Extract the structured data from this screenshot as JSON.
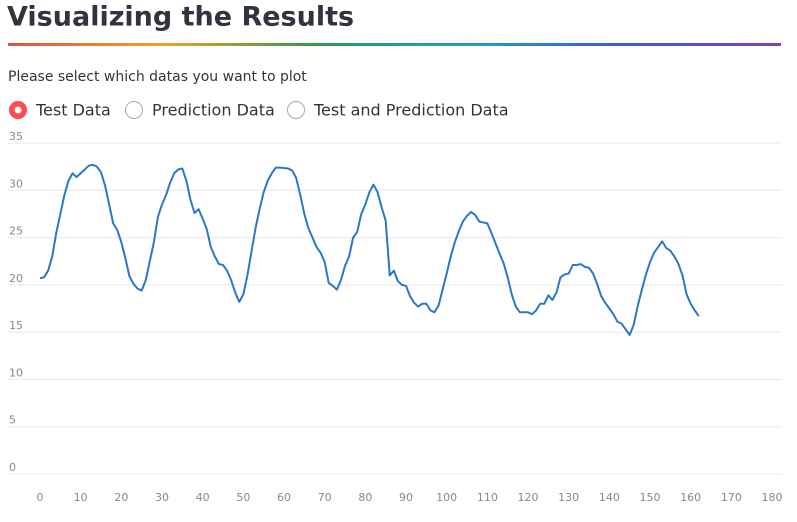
{
  "header": {
    "title": "Visualizing the Results"
  },
  "prompt": "Please select which datas you want to plot",
  "radio": {
    "options": [
      "Test Data",
      "Prediction Data",
      "Test and Prediction Data"
    ],
    "selected": 0
  },
  "chart_data": {
    "type": "line",
    "color": "#2a78c7",
    "grid": true,
    "xlim": [
      0,
      180
    ],
    "xticks": [
      0,
      10,
      20,
      30,
      40,
      50,
      60,
      70,
      80,
      90,
      100,
      110,
      120,
      130,
      140,
      150,
      160,
      170,
      180
    ],
    "ylim": [
      0,
      35
    ],
    "yticks": [
      0,
      5,
      10,
      15,
      20,
      25,
      30,
      35
    ],
    "x": [
      0,
      1,
      2,
      3,
      4,
      5,
      6,
      7,
      8,
      9,
      10,
      11,
      12,
      13,
      14,
      15,
      16,
      17,
      18,
      19,
      20,
      21,
      22,
      23,
      24,
      25,
      26,
      27,
      28,
      29,
      30,
      31,
      32,
      33,
      34,
      35,
      36,
      37,
      38,
      39,
      40,
      41,
      42,
      43,
      44,
      45,
      46,
      47,
      48,
      49,
      50,
      51,
      52,
      53,
      54,
      55,
      56,
      57,
      58,
      59,
      60,
      61,
      62,
      63,
      64,
      65,
      66,
      67,
      68,
      69,
      70,
      71,
      72,
      73,
      74,
      75,
      76,
      77,
      78,
      79,
      80,
      81,
      82,
      83,
      84,
      85,
      86,
      87,
      88,
      89,
      90,
      91,
      92,
      93,
      94,
      95,
      96,
      97,
      98,
      99,
      100,
      101,
      102,
      103,
      104,
      105,
      106,
      107,
      108,
      109,
      110,
      111,
      112,
      113,
      114,
      115,
      116,
      117,
      118,
      119,
      120,
      121,
      122,
      123,
      124,
      125,
      126,
      127,
      128,
      129,
      130,
      131,
      132,
      133,
      134,
      135,
      136,
      137,
      138,
      139,
      140,
      141,
      142,
      143,
      144,
      145,
      146,
      147,
      148,
      149,
      150,
      151,
      152,
      153,
      154,
      155,
      156,
      157,
      158,
      159,
      160,
      161,
      162
    ],
    "values": [
      20.7,
      20.8,
      21.5,
      23,
      25.5,
      27.5,
      29.5,
      31,
      31.8,
      31.4,
      31.8,
      32.2,
      32.6,
      32.7,
      32.5,
      31.9,
      30.5,
      28.5,
      26.5,
      25.8,
      24.5,
      22.8,
      20.9,
      20.1,
      19.6,
      19.4,
      20.5,
      22.5,
      24.5,
      27.2,
      28.5,
      29.5,
      30.8,
      31.8,
      32.2,
      32.3,
      31,
      29,
      27.6,
      28,
      27,
      25.9,
      24,
      23,
      22.2,
      22.1,
      21.5,
      20.5,
      19.2,
      18.2,
      19,
      21,
      23.5,
      26,
      28,
      29.8,
      31,
      31.8,
      32.4,
      32.4,
      32.35,
      32.3,
      32.1,
      31.3,
      29.5,
      27.5,
      26,
      25,
      24,
      23.4,
      22.4,
      20.2,
      19.9,
      19.5,
      20.5,
      22,
      23,
      25,
      25.6,
      27.5,
      28.5,
      29.8,
      30.6,
      29.8,
      28.2,
      26.8,
      21,
      21.5,
      20.4,
      20,
      19.9,
      18.8,
      18.1,
      17.7,
      18,
      18,
      17.3,
      17.1,
      17.8,
      19.5,
      21.2,
      23,
      24.5,
      25.7,
      26.7,
      27.3,
      27.7,
      27.4,
      26.7,
      26.6,
      26.5,
      25.5,
      24.4,
      23.3,
      22.3,
      20.8,
      19,
      17.7,
      17.1,
      17.1,
      17.1,
      16.9,
      17.3,
      18,
      18,
      18.9,
      18.4,
      19.2,
      20.8,
      21.1,
      21.2,
      22.1,
      22.1,
      22.2,
      21.9,
      21.8,
      21.2,
      20.1,
      18.8,
      18.1,
      17.5,
      16.9,
      16.1,
      15.9,
      15.3,
      14.7,
      15.8,
      17.8,
      19.5,
      21.1,
      22.4,
      23.4,
      24,
      24.6,
      23.9,
      23.6,
      23,
      22.2,
      21,
      19,
      18,
      17.3,
      16.7
    ]
  }
}
